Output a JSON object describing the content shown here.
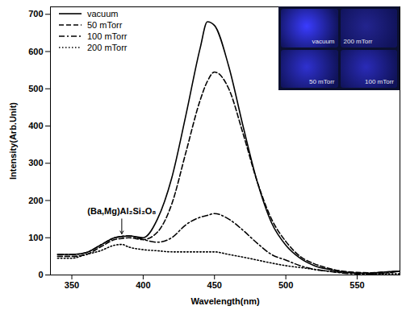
{
  "chart_data": {
    "type": "line",
    "xlabel": "Wavelength(nm)",
    "ylabel": "Intensity(Arb.Unit)",
    "x": [
      340,
      350,
      360,
      370,
      380,
      385,
      390,
      400,
      410,
      420,
      430,
      440,
      445,
      450,
      460,
      470,
      480,
      490,
      500,
      510,
      520,
      530,
      540,
      550,
      560,
      570,
      580
    ],
    "series": [
      {
        "name": "vacuum",
        "color": "#000000",
        "line_style": "solid",
        "values": [
          55,
          55,
          60,
          80,
          100,
          103,
          105,
          100,
          150,
          260,
          430,
          610,
          680,
          670,
          560,
          400,
          250,
          140,
          80,
          45,
          25,
          15,
          8,
          5,
          5,
          8,
          10
        ]
      },
      {
        "name": "50 mTorr",
        "color": "#000000",
        "line_style": "dashed",
        "values": [
          50,
          50,
          55,
          75,
          95,
          98,
          100,
          95,
          115,
          190,
          330,
          470,
          520,
          545,
          500,
          380,
          250,
          150,
          90,
          50,
          30,
          18,
          10,
          7,
          6,
          8,
          10
        ]
      },
      {
        "name": "100 mTorr",
        "color": "#000000",
        "line_style": "dashdot",
        "values": [
          55,
          55,
          60,
          80,
          100,
          104,
          105,
          95,
          88,
          100,
          135,
          155,
          160,
          165,
          150,
          120,
          85,
          55,
          40,
          25,
          15,
          10,
          5,
          3,
          2,
          5,
          10
        ]
      },
      {
        "name": "200 mTorr",
        "color": "#000000",
        "line_style": "dotted",
        "values": [
          45,
          45,
          55,
          65,
          80,
          82,
          75,
          68,
          65,
          62,
          62,
          62,
          62,
          62,
          55,
          48,
          40,
          32,
          25,
          20,
          15,
          10,
          7,
          5,
          3,
          3,
          3
        ]
      }
    ],
    "xlim": [
      335,
      580
    ],
    "ylim": [
      0,
      720
    ],
    "xticks": [
      350,
      400,
      450,
      500,
      550
    ],
    "yticks": [
      0,
      100,
      200,
      300,
      400,
      500,
      600,
      700
    ],
    "legend": "top-left",
    "annotations": [
      {
        "text": "(Ba,Mg)Al₂Si₂O₈",
        "x": 385,
        "y": 170
      }
    ],
    "inset_labels": [
      "vacuum",
      "200 mTorr",
      "50 mTorr",
      "100 mTorr"
    ]
  }
}
